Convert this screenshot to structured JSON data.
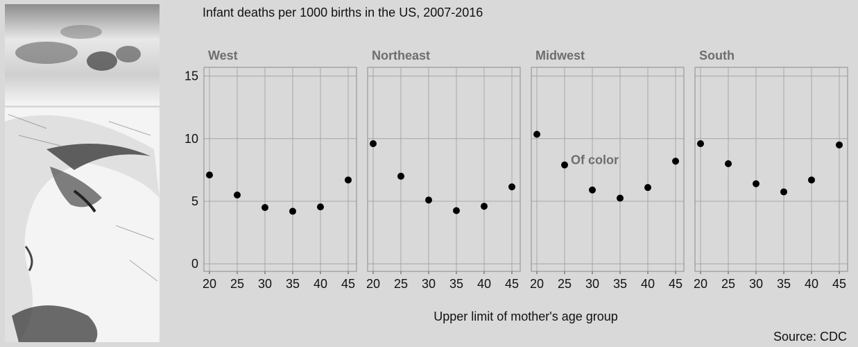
{
  "chart_data": {
    "type": "scatter",
    "title": "Infant deaths per 1000 births in the US, 2007-2016",
    "xlabel": "Upper limit of mother's age group",
    "ylabel": "",
    "source": "Source: CDC",
    "x": [
      20,
      25,
      30,
      35,
      40,
      45
    ],
    "x_ticks": [
      "20",
      "25",
      "30",
      "35",
      "40",
      "45"
    ],
    "y_ticks": [
      "0",
      "5",
      "10",
      "15"
    ],
    "xlim": [
      19,
      46.5
    ],
    "ylim": [
      -0.6,
      15.7
    ],
    "grid": true,
    "annotation": {
      "text": "Of color",
      "panel": "Midwest",
      "x": 25,
      "y": 7.9
    },
    "panels": [
      {
        "name": "West",
        "values": [
          7.1,
          5.5,
          4.5,
          4.2,
          4.55,
          6.7
        ]
      },
      {
        "name": "Northeast",
        "values": [
          9.6,
          7.0,
          5.1,
          4.25,
          4.6,
          6.15
        ]
      },
      {
        "name": "Midwest",
        "values": [
          10.35,
          7.9,
          5.9,
          5.25,
          6.1,
          8.2
        ]
      },
      {
        "name": "South",
        "values": [
          9.6,
          8.0,
          6.4,
          5.75,
          6.7,
          9.5
        ]
      }
    ]
  },
  "images": {
    "photo_top": "sleeping infant photo",
    "photo_bottom": "sketch of mother face"
  }
}
